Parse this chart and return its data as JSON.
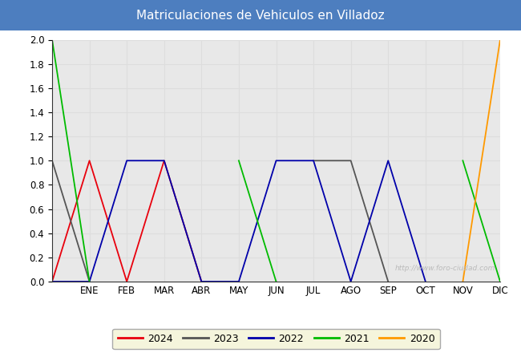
{
  "title": "Matriculaciones de Vehiculos en Villadoz",
  "title_bg_color": "#4d7ebf",
  "title_text_color": "#ffffff",
  "x_labels": [
    "",
    "ENE",
    "FEB",
    "MAR",
    "ABR",
    "MAY",
    "JUN",
    "JUL",
    "AGO",
    "SEP",
    "OCT",
    "NOV",
    "DIC"
  ],
  "ylim": [
    0.0,
    2.0
  ],
  "yticks": [
    0.0,
    0.2,
    0.4,
    0.6,
    0.8,
    1.0,
    1.2,
    1.4,
    1.6,
    1.8,
    2.0
  ],
  "series": [
    {
      "label": "2024",
      "color": "#e8000d",
      "data": [
        0,
        1,
        0,
        1,
        0,
        null,
        null,
        null,
        null,
        null,
        null,
        null,
        null
      ]
    },
    {
      "label": "2023",
      "color": "#555555",
      "data": [
        1,
        0,
        null,
        null,
        null,
        null,
        null,
        1,
        1,
        0,
        null,
        null,
        null
      ]
    },
    {
      "label": "2022",
      "color": "#0000aa",
      "data": [
        0,
        0,
        1,
        1,
        0,
        0,
        1,
        1,
        0,
        1,
        0,
        null,
        null
      ]
    },
    {
      "label": "2021",
      "color": "#00bb00",
      "data": [
        2,
        0,
        null,
        null,
        null,
        1,
        0,
        null,
        null,
        null,
        null,
        1,
        0
      ]
    },
    {
      "label": "2020",
      "color": "#ff9900",
      "data": [
        null,
        null,
        null,
        null,
        null,
        null,
        null,
        null,
        null,
        null,
        null,
        0,
        2
      ]
    }
  ],
  "grid_color": "#dddddd",
  "plot_bg_color": "#e8e8e8",
  "watermark": "http://www.foro-ciudad.com",
  "fig_width": 6.5,
  "fig_height": 4.5,
  "dpi": 100
}
